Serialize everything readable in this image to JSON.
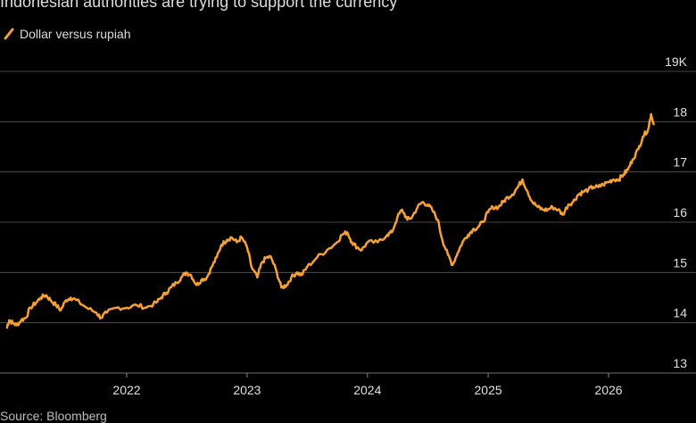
{
  "title": "Indonesian authorities are trying to support the currency",
  "source": "Source: Bloomberg",
  "colors": {
    "line": "#f7a033",
    "grid": "#5a5a5a",
    "background": "#000000"
  },
  "chart_data": {
    "type": "line",
    "title": "Indonesian authorities are trying to support the currency",
    "xlabel": "",
    "ylabel": "",
    "x_ticks": [
      "2022",
      "2023",
      "2024",
      "2025",
      "2026"
    ],
    "y_ticks": [
      "13",
      "14",
      "15",
      "16",
      "17",
      "18",
      "19K"
    ],
    "ylim": [
      13,
      19
    ],
    "xlim": [
      "2021-01-01",
      "2026-07-01"
    ],
    "grid": "horizontal",
    "legend_position": "top-left",
    "series": [
      {
        "name": "Dollar versus rupiah",
        "points": [
          [
            "2021-01-01",
            13.9
          ],
          [
            "2021-01-10",
            14.05
          ],
          [
            "2021-01-20",
            14.0
          ],
          [
            "2021-02-01",
            13.95
          ],
          [
            "2021-02-15",
            14.05
          ],
          [
            "2021-03-01",
            14.1
          ],
          [
            "2021-03-15",
            14.3
          ],
          [
            "2021-04-01",
            14.4
          ],
          [
            "2021-04-15",
            14.5
          ],
          [
            "2021-05-01",
            14.55
          ],
          [
            "2021-05-15",
            14.45
          ],
          [
            "2021-06-01",
            14.35
          ],
          [
            "2021-06-15",
            14.25
          ],
          [
            "2021-07-01",
            14.45
          ],
          [
            "2021-07-15",
            14.5
          ],
          [
            "2021-08-01",
            14.45
          ],
          [
            "2021-09-01",
            14.3
          ],
          [
            "2021-10-01",
            14.2
          ],
          [
            "2021-10-15",
            14.1
          ],
          [
            "2021-11-01",
            14.2
          ],
          [
            "2021-12-01",
            14.3
          ],
          [
            "2022-01-01",
            14.3
          ],
          [
            "2022-02-01",
            14.35
          ],
          [
            "2022-03-01",
            14.3
          ],
          [
            "2022-04-01",
            14.4
          ],
          [
            "2022-04-15",
            14.5
          ],
          [
            "2022-05-01",
            14.6
          ],
          [
            "2022-05-15",
            14.7
          ],
          [
            "2022-06-01",
            14.8
          ],
          [
            "2022-06-15",
            14.9
          ],
          [
            "2022-07-01",
            15.0
          ],
          [
            "2022-07-15",
            14.95
          ],
          [
            "2022-08-01",
            14.75
          ],
          [
            "2022-08-15",
            14.85
          ],
          [
            "2022-09-01",
            14.9
          ],
          [
            "2022-09-15",
            15.1
          ],
          [
            "2022-10-01",
            15.3
          ],
          [
            "2022-10-15",
            15.55
          ],
          [
            "2022-11-01",
            15.65
          ],
          [
            "2022-11-15",
            15.7
          ],
          [
            "2022-12-01",
            15.6
          ],
          [
            "2022-12-15",
            15.7
          ],
          [
            "2023-01-01",
            15.5
          ],
          [
            "2023-01-15",
            15.1
          ],
          [
            "2023-02-01",
            14.9
          ],
          [
            "2023-02-15",
            15.2
          ],
          [
            "2023-03-01",
            15.3
          ],
          [
            "2023-03-15",
            15.3
          ],
          [
            "2023-04-01",
            15.0
          ],
          [
            "2023-04-15",
            14.7
          ],
          [
            "2023-05-01",
            14.75
          ],
          [
            "2023-05-15",
            14.9
          ],
          [
            "2023-06-01",
            15.0
          ],
          [
            "2023-06-15",
            14.95
          ],
          [
            "2023-07-01",
            15.1
          ],
          [
            "2023-08-01",
            15.3
          ],
          [
            "2023-09-01",
            15.45
          ],
          [
            "2023-10-01",
            15.6
          ],
          [
            "2023-10-15",
            15.75
          ],
          [
            "2023-11-01",
            15.8
          ],
          [
            "2023-11-15",
            15.6
          ],
          [
            "2023-12-01",
            15.5
          ],
          [
            "2023-12-15",
            15.45
          ],
          [
            "2024-01-01",
            15.6
          ],
          [
            "2024-02-01",
            15.6
          ],
          [
            "2024-03-01",
            15.75
          ],
          [
            "2024-03-15",
            15.8
          ],
          [
            "2024-04-01",
            16.1
          ],
          [
            "2024-04-15",
            16.25
          ],
          [
            "2024-05-01",
            16.05
          ],
          [
            "2024-05-15",
            16.1
          ],
          [
            "2024-06-01",
            16.3
          ],
          [
            "2024-06-15",
            16.4
          ],
          [
            "2024-07-01",
            16.35
          ],
          [
            "2024-07-15",
            16.25
          ],
          [
            "2024-08-01",
            16.05
          ],
          [
            "2024-08-15",
            15.65
          ],
          [
            "2024-09-01",
            15.35
          ],
          [
            "2024-09-15",
            15.15
          ],
          [
            "2024-10-01",
            15.4
          ],
          [
            "2024-10-15",
            15.6
          ],
          [
            "2024-11-01",
            15.75
          ],
          [
            "2024-11-15",
            15.85
          ],
          [
            "2024-12-01",
            15.9
          ],
          [
            "2024-12-15",
            16.0
          ],
          [
            "2025-01-01",
            16.2
          ],
          [
            "2025-01-15",
            16.3
          ],
          [
            "2025-02-01",
            16.3
          ],
          [
            "2025-02-15",
            16.4
          ],
          [
            "2025-03-01",
            16.5
          ],
          [
            "2025-03-15",
            16.55
          ],
          [
            "2025-04-01",
            16.7
          ],
          [
            "2025-04-15",
            16.85
          ],
          [
            "2025-05-01",
            16.6
          ],
          [
            "2025-05-15",
            16.4
          ],
          [
            "2025-06-01",
            16.3
          ],
          [
            "2025-06-15",
            16.25
          ],
          [
            "2025-07-01",
            16.25
          ],
          [
            "2025-07-15",
            16.3
          ],
          [
            "2025-08-01",
            16.25
          ],
          [
            "2025-08-15",
            16.15
          ],
          [
            "2025-09-01",
            16.35
          ],
          [
            "2025-09-15",
            16.4
          ],
          [
            "2025-10-01",
            16.55
          ],
          [
            "2025-10-15",
            16.6
          ],
          [
            "2025-11-01",
            16.65
          ],
          [
            "2025-11-15",
            16.7
          ],
          [
            "2025-12-01",
            16.7
          ],
          [
            "2025-12-15",
            16.75
          ],
          [
            "2026-01-01",
            16.8
          ],
          [
            "2026-01-15",
            16.85
          ],
          [
            "2026-02-01",
            16.85
          ],
          [
            "2026-02-15",
            16.95
          ],
          [
            "2026-03-01",
            17.05
          ],
          [
            "2026-03-15",
            17.25
          ],
          [
            "2026-04-01",
            17.45
          ],
          [
            "2026-04-15",
            17.7
          ],
          [
            "2026-05-01",
            17.85
          ],
          [
            "2026-05-10",
            18.15
          ],
          [
            "2026-05-18",
            17.95
          ]
        ]
      }
    ]
  }
}
